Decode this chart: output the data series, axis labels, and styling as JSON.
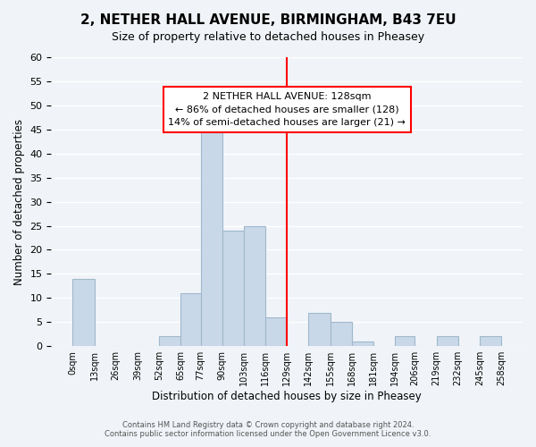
{
  "title": "2, NETHER HALL AVENUE, BIRMINGHAM, B43 7EU",
  "subtitle": "Size of property relative to detached houses in Pheasey",
  "xlabel": "Distribution of detached houses by size in Pheasey",
  "ylabel": "Number of detached properties",
  "footer_line1": "Contains HM Land Registry data © Crown copyright and database right 2024.",
  "footer_line2": "Contains public sector information licensed under the Open Government Licence v3.0.",
  "bin_labels": [
    "0sqm",
    "13sqm",
    "26sqm",
    "39sqm",
    "52sqm",
    "65sqm",
    "77sqm",
    "90sqm",
    "103sqm",
    "116sqm",
    "129sqm",
    "142sqm",
    "155sqm",
    "168sqm",
    "181sqm",
    "194sqm",
    "206sqm",
    "219sqm",
    "232sqm",
    "245sqm",
    "258sqm"
  ],
  "bin_edges": [
    0,
    13,
    26,
    39,
    52,
    65,
    77,
    90,
    103,
    116,
    129,
    142,
    155,
    168,
    181,
    194,
    206,
    219,
    232,
    245,
    258
  ],
  "counts": [
    14,
    0,
    0,
    0,
    2,
    11,
    47,
    24,
    25,
    6,
    0,
    7,
    5,
    1,
    0,
    2,
    0,
    2,
    0,
    2
  ],
  "bar_color": "#c8d8e8",
  "bar_edge_color": "#a0b8cc",
  "vline_x": 129,
  "vline_color": "red",
  "annotation_title": "2 NETHER HALL AVENUE: 128sqm",
  "annotation_line1": "← 86% of detached houses are smaller (128)",
  "annotation_line2": "14% of semi-detached houses are larger (21) →",
  "annotation_box_color": "white",
  "annotation_box_edge_color": "red",
  "ylim": [
    0,
    60
  ],
  "yticks": [
    0,
    5,
    10,
    15,
    20,
    25,
    30,
    35,
    40,
    45,
    50,
    55,
    60
  ],
  "background_color": "#f0f4f8",
  "grid_color": "white"
}
